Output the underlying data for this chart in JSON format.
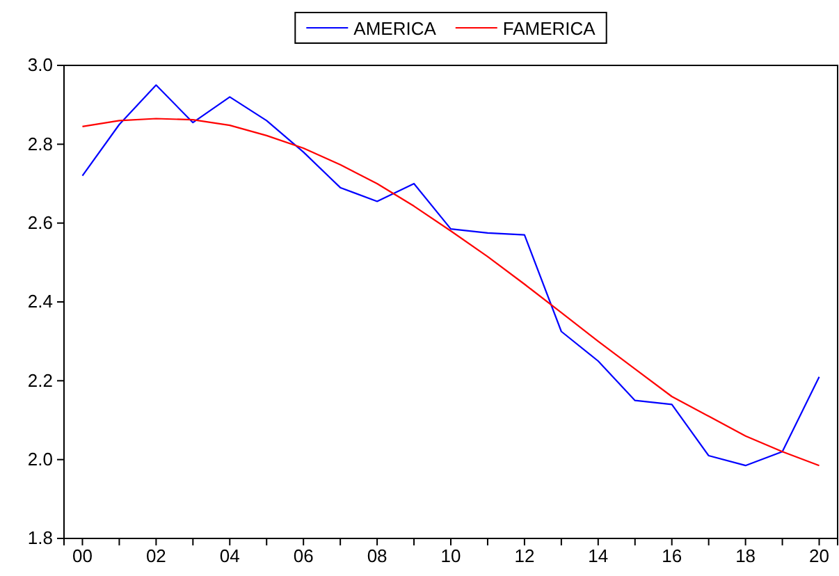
{
  "chart_data": {
    "type": "line",
    "x": [
      2000,
      2001,
      2002,
      2003,
      2004,
      2005,
      2006,
      2007,
      2008,
      2009,
      2010,
      2011,
      2012,
      2013,
      2014,
      2015,
      2016,
      2017,
      2018,
      2019,
      2020
    ],
    "series": [
      {
        "name": "AMERICA",
        "color": "#0000ff",
        "values": [
          2.72,
          2.85,
          2.95,
          2.855,
          2.92,
          2.86,
          2.78,
          2.69,
          2.655,
          2.7,
          2.585,
          2.575,
          2.57,
          2.325,
          2.25,
          2.15,
          2.14,
          2.01,
          1.985,
          2.02,
          2.21
        ]
      },
      {
        "name": "FAMERICA",
        "color": "#ff0000",
        "values": [
          2.845,
          2.86,
          2.865,
          2.862,
          2.848,
          2.822,
          2.79,
          2.748,
          2.7,
          2.643,
          2.58,
          2.515,
          2.445,
          2.373,
          2.3,
          2.23,
          2.16,
          2.11,
          2.06,
          2.02,
          1.985
        ]
      }
    ],
    "xlim": [
      1999.5,
      2020.5
    ],
    "xticks": [
      {
        "value": 2000,
        "label": "00"
      },
      {
        "value": 2001,
        "label": null
      },
      {
        "value": 2002,
        "label": "02"
      },
      {
        "value": 2003,
        "label": null
      },
      {
        "value": 2004,
        "label": "04"
      },
      {
        "value": 2005,
        "label": null
      },
      {
        "value": 2006,
        "label": "06"
      },
      {
        "value": 2007,
        "label": null
      },
      {
        "value": 2008,
        "label": "08"
      },
      {
        "value": 2009,
        "label": null
      },
      {
        "value": 2010,
        "label": "10"
      },
      {
        "value": 2011,
        "label": null
      },
      {
        "value": 2012,
        "label": "12"
      },
      {
        "value": 2013,
        "label": null
      },
      {
        "value": 2014,
        "label": "14"
      },
      {
        "value": 2015,
        "label": null
      },
      {
        "value": 2016,
        "label": "16"
      },
      {
        "value": 2017,
        "label": null
      },
      {
        "value": 2018,
        "label": "18"
      },
      {
        "value": 2019,
        "label": null
      },
      {
        "value": 2020,
        "label": "20"
      }
    ],
    "ylim": [
      1.8,
      3.0
    ],
    "yticks": [
      {
        "value": 1.8,
        "label": "1.8"
      },
      {
        "value": 2.0,
        "label": "2.0"
      },
      {
        "value": 2.2,
        "label": "2.2"
      },
      {
        "value": 2.4,
        "label": "2.4"
      },
      {
        "value": 2.6,
        "label": "2.6"
      },
      {
        "value": 2.8,
        "label": "2.8"
      },
      {
        "value": 3.0,
        "label": "3.0"
      }
    ],
    "legend": "top",
    "grid": false,
    "marker": "none",
    "line_style": "solid"
  }
}
